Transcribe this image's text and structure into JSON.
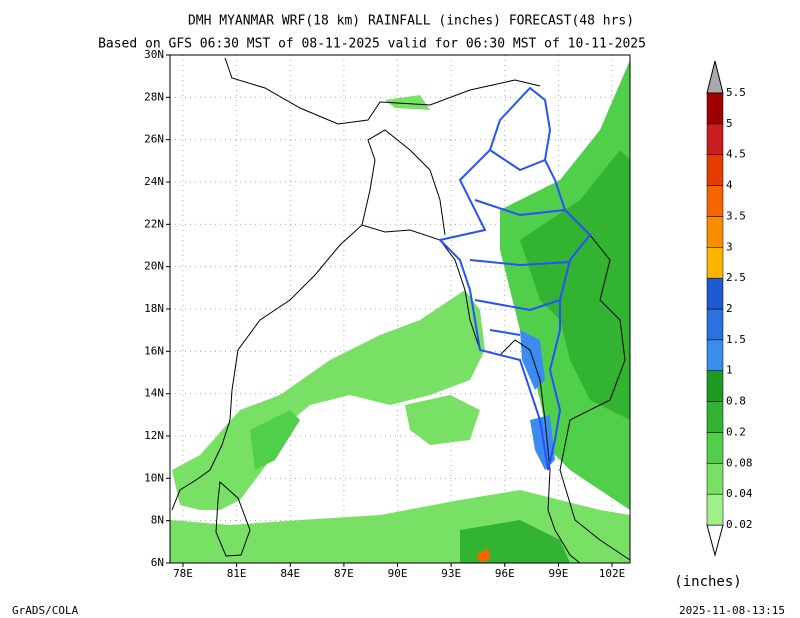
{
  "title": "DMH MYANMAR WRF(18 km) RAINFALL (inches) FORECAST(48 hrs)",
  "subtitle": "Based on GFS 06:30 MST of 08-11-2025 valid for 06:30 MST of 10-11-2025",
  "map": {
    "lon_labels": [
      "78E",
      "81E",
      "84E",
      "87E",
      "90E",
      "93E",
      "96E",
      "99E",
      "102E"
    ],
    "lat_labels": [
      "6N",
      "8N",
      "10N",
      "12N",
      "14N",
      "16N",
      "18N",
      "20N",
      "22N",
      "24N",
      "26N",
      "28N",
      "30N"
    ]
  },
  "colorbar": {
    "unit": "(inches)",
    "levels": [
      0.02,
      0.04,
      0.08,
      0.2,
      0.8,
      1,
      1.5,
      2,
      2.5,
      3,
      3.5,
      4,
      4.5,
      5,
      5.5
    ],
    "colors": [
      "#a0f08c",
      "#78e064",
      "#50d04a",
      "#32b432",
      "#1e9a1e",
      "#3c8cf0",
      "#2a72e0",
      "#1e5ad2",
      "#fab400",
      "#fa8c00",
      "#f56400",
      "#e63c00",
      "#c81e1e",
      "#a00000"
    ]
  },
  "footer": {
    "left": "GrADS/COLA",
    "right": "2025-11-08-13:15"
  }
}
